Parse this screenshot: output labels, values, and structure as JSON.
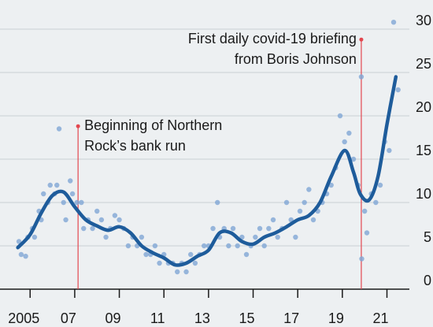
{
  "chart_data": {
    "type": "scatter",
    "points": {
      "color": "#7fa6d4",
      "x": [
        2004.5,
        2004.6,
        2004.8,
        2004.9,
        2005.1,
        2005.2,
        2005.4,
        2005.5,
        2005.6,
        2005.8,
        2005.9,
        2006.1,
        2006.2,
        2006.3,
        2006.5,
        2006.6,
        2006.8,
        2006.9,
        2007.1,
        2007.3,
        2007.4,
        2007.6,
        2007.8,
        2008,
        2008.2,
        2008.4,
        2008.6,
        2008.8,
        2009,
        2009.2,
        2009.4,
        2009.6,
        2009.8,
        2010,
        2010.2,
        2010.4,
        2010.6,
        2010.8,
        2011,
        2011.2,
        2011.4,
        2011.6,
        2011.8,
        2012,
        2012.2,
        2012.4,
        2012.6,
        2012.8,
        2013,
        2013.2,
        2013.4,
        2013.5,
        2013.7,
        2013.9,
        2014.1,
        2014.3,
        2014.5,
        2014.7,
        2014.9,
        2015.1,
        2015.3,
        2015.5,
        2015.7,
        2015.9,
        2016.1,
        2016.3,
        2016.5,
        2016.7,
        2016.9,
        2017.1,
        2017.3,
        2017.5,
        2017.7,
        2017.9,
        2018.1,
        2018.3,
        2018.5,
        2018.7,
        2018.9,
        2019.1,
        2019.3,
        2019.5,
        2019.7,
        2019.85,
        2019.87,
        2020,
        2020.1,
        2020.3,
        2020.5,
        2020.7,
        2020.9,
        2021.1,
        2021.3,
        2021.5
      ],
      "values": [
        5.5,
        4,
        3.8,
        6,
        7,
        6,
        9,
        8,
        11,
        10,
        12,
        11,
        12,
        18.5,
        10,
        8,
        12.5,
        11,
        10,
        10,
        7,
        8,
        7,
        9,
        8,
        6,
        7,
        8.5,
        8,
        7,
        5,
        6,
        5,
        6,
        4,
        4,
        5,
        3,
        4,
        3,
        3,
        2,
        3,
        2,
        4,
        3,
        4,
        5,
        5,
        7,
        10,
        6,
        7,
        5,
        7,
        5,
        6,
        4,
        5,
        6,
        7,
        5,
        7,
        8,
        6,
        7,
        10,
        8,
        6,
        9,
        10,
        11.5,
        8,
        9,
        10,
        11,
        12,
        14,
        20,
        17,
        18,
        15,
        12,
        24.5,
        3.5,
        9,
        6.5,
        11,
        10,
        12,
        17,
        16,
        30.8,
        23
      ]
    },
    "trend": {
      "color": "#1e5c9b",
      "x": [
        2004.45,
        2005,
        2005.5,
        2006,
        2006.5,
        2007,
        2007.5,
        2008,
        2008.5,
        2009,
        2009.5,
        2010,
        2010.5,
        2011,
        2011.5,
        2012,
        2012.5,
        2013,
        2013.5,
        2014,
        2014.5,
        2015,
        2015.5,
        2016,
        2016.5,
        2017,
        2017.5,
        2018,
        2018.5,
        2019.1,
        2019.5,
        2019.8,
        2020.2,
        2020.6,
        2021,
        2021.4
      ],
      "values": [
        4.8,
        6.3,
        8.8,
        10.8,
        11.2,
        9.5,
        8,
        7.3,
        6.8,
        7.2,
        6.5,
        5,
        4.2,
        3.6,
        2.8,
        3,
        3.8,
        4.5,
        6.5,
        6.5,
        5.5,
        5.2,
        6,
        6.5,
        7.2,
        8,
        8.5,
        10,
        13,
        16,
        13.5,
        11,
        10.3,
        13,
        19,
        24.5
      ]
    },
    "annotations": [
      {
        "lines": [
          "Beginning of Northern",
          "Rock’s bank run"
        ],
        "x": 2007.15,
        "y": 18.8,
        "color": "#e3474f"
      },
      {
        "lines": [
          "First daily covid-19 briefing",
          "from Boris Johnson"
        ],
        "x": 2019.85,
        "y": 28.8,
        "color": "#e3474f"
      }
    ],
    "xlim": [
      2003.65,
      2021.9
    ],
    "xticks": [
      2005,
      {
        "value": 2007,
        "label": "07"
      },
      {
        "value": 2009,
        "label": "09"
      },
      {
        "value": 2011,
        "label": "11"
      },
      {
        "value": 2013,
        "label": "13"
      },
      {
        "value": 2015,
        "label": "15"
      },
      {
        "value": 2017,
        "label": "17"
      },
      {
        "value": 2019,
        "label": "19"
      },
      {
        "value": 2021,
        "label": "21"
      }
    ],
    "ylim": [
      0,
      30
    ],
    "yticks": [
      0,
      5,
      10,
      15,
      20,
      25,
      30
    ],
    "grid": true,
    "y_axis_side": "right"
  }
}
